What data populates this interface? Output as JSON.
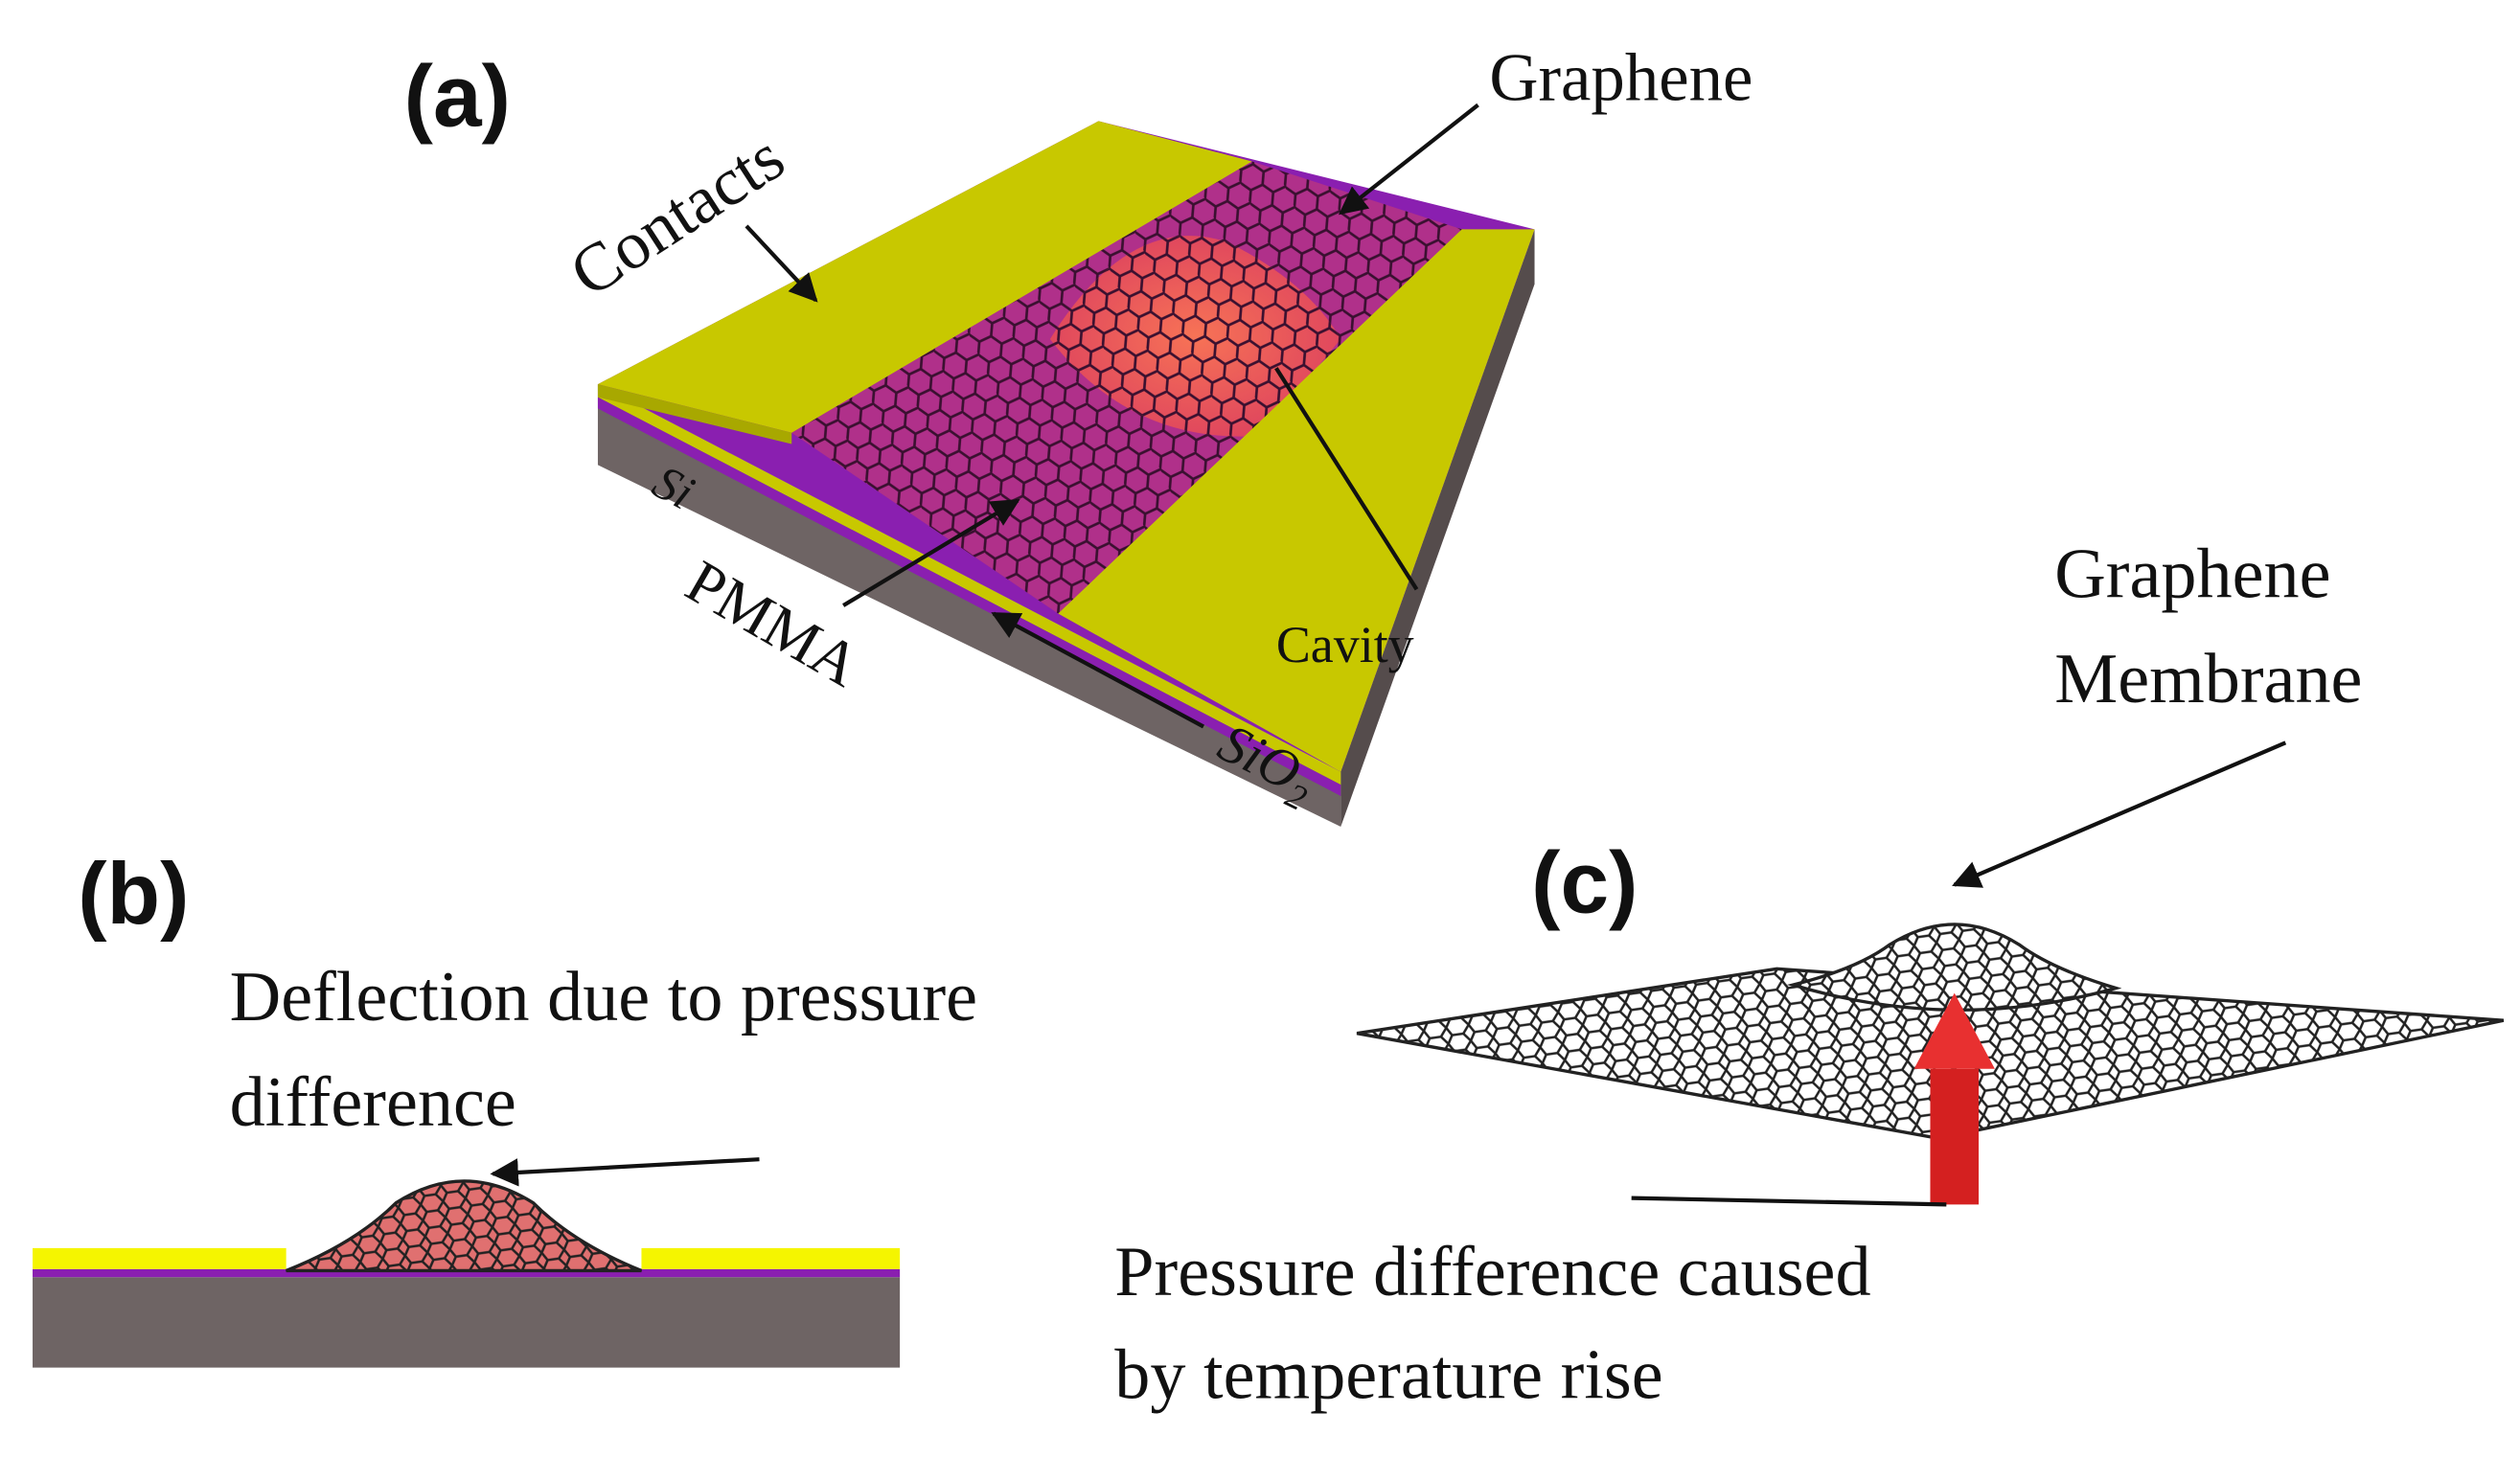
{
  "panel_a": {
    "label": "(a)",
    "contacts": "Contacts",
    "graphene": "Graphene",
    "si": "Si",
    "pmma": "PMMA",
    "cavity": "Cavity",
    "sio2": {
      "base": "SiO",
      "sub": "2"
    }
  },
  "panel_b": {
    "label": "(b)",
    "caption_lines": [
      "Deflection due to pressure",
      "difference"
    ]
  },
  "panel_c": {
    "label": "(c)",
    "membrane_lines": [
      "Graphene",
      "Membrane"
    ],
    "caption_lines": [
      "Pressure difference caused",
      "by temperature rise"
    ]
  }
}
